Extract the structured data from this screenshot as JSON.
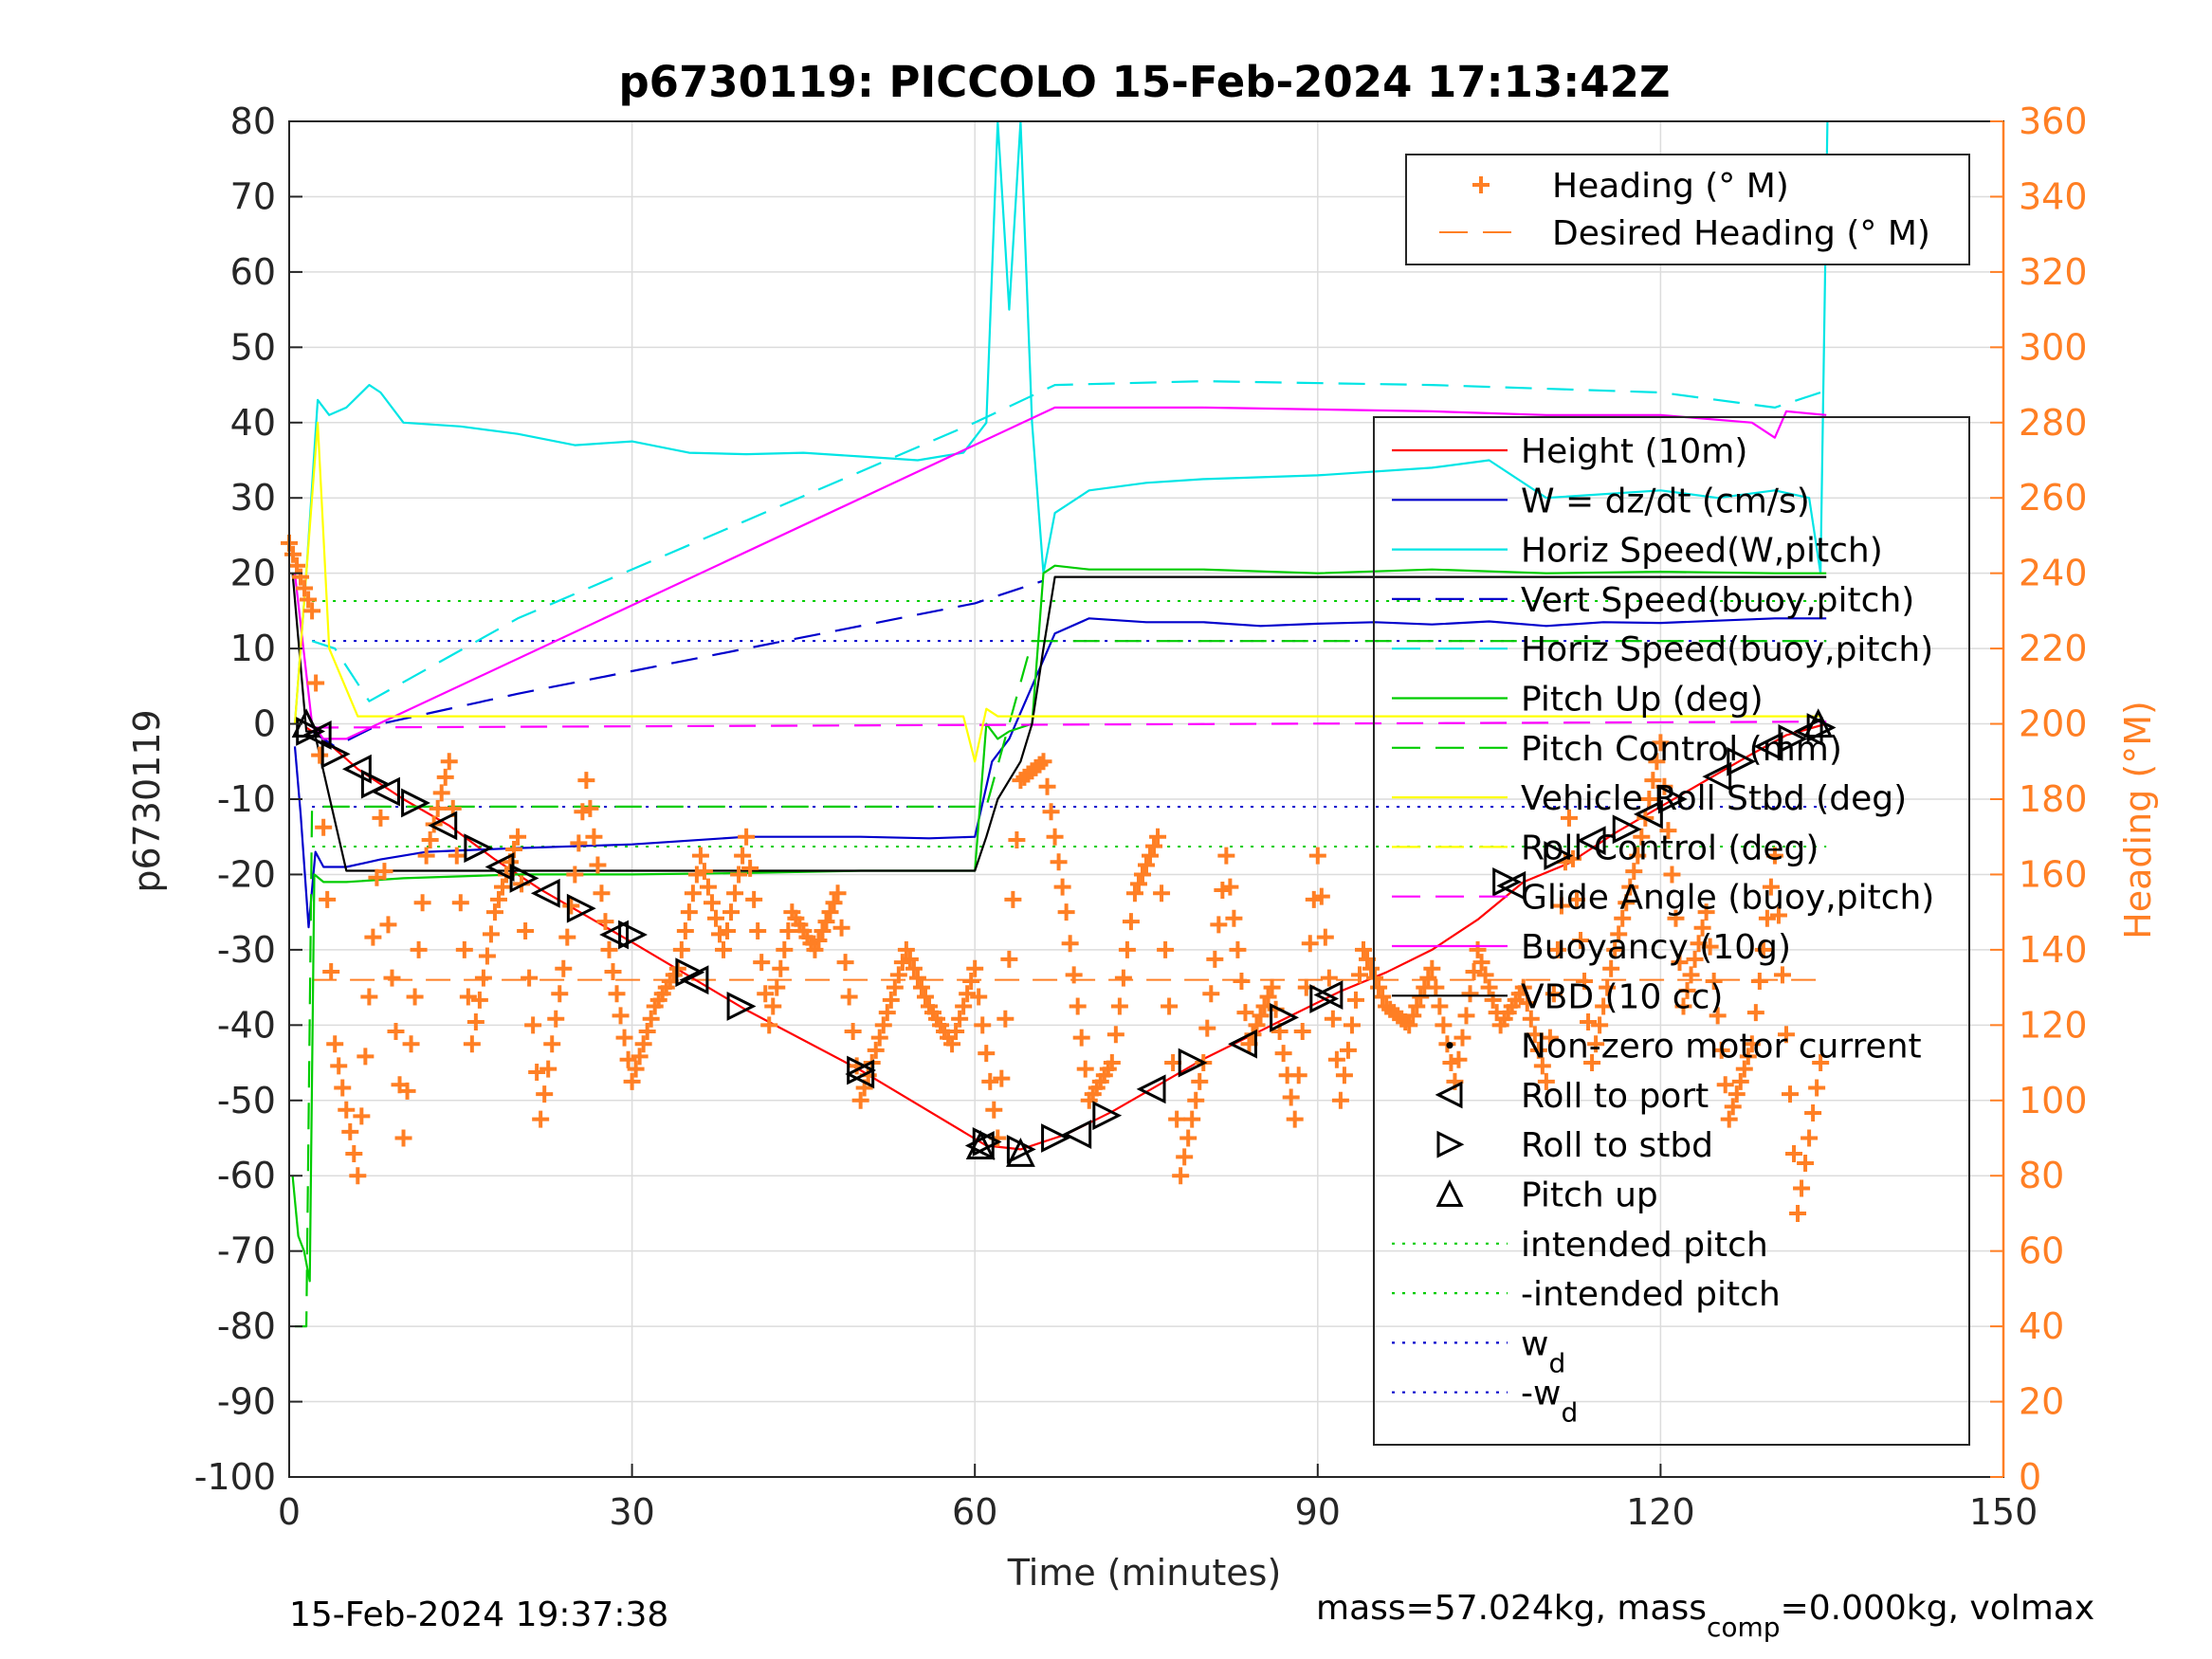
{
  "chart_data": {
    "type": "line",
    "title": "p6730119: PICCOLO 15-Feb-2024 17:13:42Z",
    "xlabel": "Time (minutes)",
    "ylabel": "p6730119",
    "y2label": "Heading (°M)",
    "xlim": [
      0,
      150
    ],
    "ylim": [
      -100,
      80
    ],
    "y2lim": [
      0,
      360
    ],
    "xticks": [
      "0",
      "30",
      "60",
      "90",
      "120",
      "150"
    ],
    "yticks": [
      "80",
      "70",
      "60",
      "50",
      "40",
      "30",
      "20",
      "10",
      "0",
      "-10",
      "-20",
      "-30",
      "-40",
      "-50",
      "-60",
      "-70",
      "-80",
      "-90",
      "-100"
    ],
    "y2ticks": [
      "360",
      "340",
      "320",
      "300",
      "280",
      "260",
      "240",
      "220",
      "200",
      "180",
      "160",
      "140",
      "120",
      "100",
      "80",
      "60",
      "40",
      "20",
      "0"
    ],
    "grid": true,
    "footer_left": "15-Feb-2024 19:37:38",
    "footer_right_parts": [
      "mass=57.024kg, mass",
      "comp",
      "=0.000kg, volmax"
    ],
    "legend_heading": [
      {
        "label": "Heading (° M)",
        "color": "#ff7f24",
        "style": "plus"
      },
      {
        "label": "Desired Heading (° M)",
        "color": "#ff7f24",
        "style": "dash"
      }
    ],
    "legend_main": [
      {
        "label": "Height (10m)",
        "color": "#ff0000",
        "style": "solid"
      },
      {
        "label": "W = dz/dt (cm/s)",
        "color": "#0000cc",
        "style": "solid"
      },
      {
        "label": "Horiz Speed(W,pitch)",
        "color": "#00e5e5",
        "style": "solid"
      },
      {
        "label": "Vert Speed(buoy,pitch)",
        "color": "#0000cc",
        "style": "dash"
      },
      {
        "label": "Horiz Speed(buoy,pitch)",
        "color": "#00e5e5",
        "style": "dash"
      },
      {
        "label": "Pitch Up (deg)",
        "color": "#00cc00",
        "style": "solid"
      },
      {
        "label": "Pitch Control (mm)",
        "color": "#00cc00",
        "style": "dash"
      },
      {
        "label": "Vehicle Roll Stbd (deg)",
        "color": "#ffff00",
        "style": "solid"
      },
      {
        "label": "Roll Control (deg)",
        "color": "#ffff00",
        "style": "dash"
      },
      {
        "label": "Glide Angle (buoy,pitch)",
        "color": "#ff00ff",
        "style": "dash"
      },
      {
        "label": "Buoyancy (10g)",
        "color": "#ff00ff",
        "style": "solid"
      },
      {
        "label": "VBD (10 cc)",
        "color": "#000000",
        "style": "solid"
      },
      {
        "label": "Non-zero motor current",
        "color": "#000000",
        "style": "dot"
      },
      {
        "label": "Roll to port",
        "color": "#000000",
        "style": "tri-left"
      },
      {
        "label": "Roll to stbd",
        "color": "#000000",
        "style": "tri-right"
      },
      {
        "label": "Pitch up",
        "color": "#000000",
        "style": "tri-up"
      },
      {
        "label": "intended pitch",
        "color": "#00cc00",
        "style": "dotted"
      },
      {
        "label": "-intended pitch",
        "color": "#00cc00",
        "style": "dotted"
      },
      {
        "label": "w",
        "sub": "d",
        "color": "#0000cc",
        "style": "dotted"
      },
      {
        "label": "-w",
        "sub": "d",
        "color": "#0000cc",
        "style": "dotted"
      }
    ],
    "series": [
      {
        "name": "Height (10m)",
        "color": "#ff0000",
        "x": [
          1.5,
          3,
          6,
          10,
          14,
          18,
          22,
          26,
          30,
          35,
          40,
          50,
          61,
          64,
          68,
          72,
          76,
          80,
          84,
          88,
          92,
          96,
          100,
          104,
          108,
          112,
          116,
          120,
          124,
          128,
          131,
          134.5
        ],
        "y": [
          -0.5,
          -2,
          -6,
          -10,
          -13.5,
          -18,
          -22,
          -25.5,
          -29,
          -33.5,
          -38,
          -46,
          -56,
          -56.5,
          -54.5,
          -51.5,
          -48,
          -44.5,
          -41.5,
          -38.5,
          -35.5,
          -33,
          -30,
          -26,
          -21,
          -18.5,
          -14.5,
          -11,
          -7.5,
          -4,
          -1.5,
          0
        ]
      },
      {
        "name": "W = dz/dt (cm/s)",
        "color": "#0000cc",
        "x": [
          0.5,
          1,
          1.7,
          2.3,
          3,
          5,
          8,
          12,
          20,
          30,
          40,
          50,
          56,
          60,
          61.5,
          63,
          65,
          67,
          70,
          75,
          80,
          85,
          90,
          95,
          100,
          105,
          110,
          115,
          120,
          125,
          130,
          134.5
        ],
        "y": [
          -3,
          -12,
          -27,
          -17,
          -19,
          -19,
          -18,
          -17,
          -16.5,
          -16,
          -15,
          -15,
          -15.2,
          -15,
          -5,
          -2,
          5,
          12,
          14,
          13.5,
          13.5,
          13,
          13.3,
          13.5,
          13.2,
          13.6,
          13,
          13.5,
          13.4,
          13.7,
          14,
          14
        ]
      },
      {
        "name": "Horiz Speed(W,pitch)",
        "color": "#00e5e5",
        "x": [
          0.5,
          1.5,
          2.5,
          3.5,
          5,
          7,
          8,
          10,
          15,
          20,
          25,
          30,
          35,
          40,
          45,
          50,
          55,
          59,
          61,
          62,
          63,
          64,
          65,
          66,
          67,
          70,
          75,
          80,
          90,
          100,
          105,
          110,
          120,
          125,
          130,
          133,
          134,
          134.6
        ],
        "y": [
          0,
          20,
          43,
          41,
          42,
          45,
          44,
          40,
          39.5,
          38.5,
          37,
          37.5,
          36,
          35.8,
          36,
          35.5,
          35,
          36,
          40,
          80,
          55,
          80,
          40,
          20,
          28,
          31,
          32,
          32.5,
          33,
          34,
          35,
          30,
          31,
          30,
          31,
          30,
          20,
          80
        ]
      },
      {
        "name": "Vert Speed(buoy,pitch)",
        "color": "#0000cc",
        "dash": true,
        "x": [
          2,
          4,
          8,
          20,
          40,
          60,
          66
        ],
        "y": [
          -1,
          -3,
          0,
          4,
          10,
          16,
          19
        ]
      },
      {
        "name": "Horiz Speed(buoy,pitch)",
        "color": "#00e5e5",
        "dash": true,
        "x": [
          2,
          4,
          7,
          20,
          40,
          60,
          67,
          80,
          100,
          120,
          130,
          134
        ],
        "y": [
          11,
          10,
          3,
          14,
          27,
          40,
          45,
          45.5,
          45,
          44,
          42,
          44
        ]
      },
      {
        "name": "Pitch Up (deg)",
        "color": "#00cc00",
        "x": [
          0.3,
          0.8,
          1.3,
          1.8,
          2.2,
          3,
          5,
          10,
          20,
          30,
          40,
          50,
          60,
          61,
          62,
          63,
          64,
          65,
          66,
          67,
          70,
          80,
          90,
          100,
          110,
          120,
          130,
          134.5
        ],
        "y": [
          -60,
          -68,
          -70,
          -74,
          -20,
          -21,
          -21,
          -20.5,
          -20,
          -20,
          -19.8,
          -19.5,
          -19.5,
          0,
          -2,
          -1,
          -0.5,
          0,
          20,
          21,
          20.5,
          20.5,
          20,
          20.5,
          20,
          20.2,
          20,
          20
        ]
      },
      {
        "name": "Pitch Control (mm)",
        "color": "#00cc00",
        "dash": true,
        "x": [
          0.5,
          1.5,
          2,
          3,
          60,
          61,
          65,
          67,
          134.5
        ],
        "y": [
          -80,
          -80,
          -11,
          -11,
          -11,
          -11,
          11,
          11,
          11
        ]
      },
      {
        "name": "Buoyancy (10g)",
        "color": "#ff00ff",
        "x": [
          0.5,
          2,
          3,
          5,
          67,
          80,
          100,
          110,
          120,
          128,
          130,
          131,
          134.5
        ],
        "y": [
          20,
          0,
          -2,
          -2,
          42,
          42,
          41.5,
          41,
          41,
          40,
          38,
          41.5,
          41
        ]
      },
      {
        "name": "Glide Angle (buoy,pitch)",
        "color": "#ff00ff",
        "dash": true,
        "x": [
          2,
          134.5
        ],
        "y": [
          -0.5,
          0.3
        ]
      },
      {
        "name": "VBD (10 cc)",
        "color": "#000000",
        "x": [
          0.3,
          1.5,
          2.2,
          5,
          60,
          61,
          62,
          64,
          65,
          66,
          67,
          70,
          80,
          100,
          120,
          134.5
        ],
        "y": [
          20,
          -1,
          -1,
          -19.5,
          -19.5,
          -15,
          -10,
          -5,
          0,
          10,
          19.5,
          19.5,
          19.5,
          19.5,
          19.5,
          19.5
        ]
      },
      {
        "name": "Vehicle Roll Stbd (deg)",
        "color": "#ffff00",
        "x": [
          0.5,
          1.5,
          2.5,
          3.5,
          6,
          8,
          12,
          20,
          30,
          40,
          50,
          59,
          60,
          61,
          62,
          63,
          64,
          70,
          80,
          90,
          100,
          110,
          120,
          130,
          134
        ],
        "y": [
          0,
          20,
          40,
          10,
          1,
          1,
          1,
          1,
          1,
          1,
          1,
          1,
          -5,
          2,
          1,
          1,
          1,
          1,
          1,
          1,
          1,
          1,
          1,
          1,
          1
        ]
      },
      {
        "name": "Heading (° M)",
        "color": "#ff7f24",
        "axis": "right",
        "x": [
          0,
          2,
          4,
          6,
          8,
          10,
          12,
          14,
          16,
          18,
          20,
          22,
          24,
          26,
          28,
          30,
          32,
          34,
          36,
          38,
          40,
          42,
          44,
          46,
          48,
          50,
          52,
          54,
          56,
          58,
          60,
          62,
          64,
          66,
          68,
          70,
          72,
          74,
          76,
          78,
          80,
          82,
          84,
          86,
          88,
          90,
          92,
          94,
          96,
          98,
          100,
          102,
          104,
          106,
          108,
          110,
          112,
          114,
          116,
          118,
          120,
          122,
          124,
          126,
          128,
          130,
          132,
          134
        ],
        "y": [
          248,
          230,
          115,
          80,
          175,
          90,
          165,
          190,
          115,
          150,
          170,
          95,
          135,
          185,
          140,
          105,
          125,
          135,
          165,
          140,
          170,
          120,
          150,
          140,
          155,
          100,
          120,
          140,
          125,
          115,
          135,
          90,
          185,
          190,
          150,
          100,
          110,
          155,
          170,
          80,
          110,
          165,
          115,
          130,
          95,
          165,
          100,
          140,
          125,
          120,
          135,
          105,
          140,
          120,
          130,
          105,
          175,
          110,
          140,
          165,
          195,
          125,
          150,
          95,
          115,
          165,
          70,
          110
        ]
      }
    ],
    "markers": {
      "roll_to_port": {
        "x": [
          2.5,
          6,
          8.5,
          13.5,
          18.5,
          22.5,
          28.5,
          35.5,
          50,
          60.5,
          69,
          75.5,
          83.5,
          91,
          107,
          114,
          119,
          125,
          129.5,
          133
        ],
        "y": [
          -1.5,
          -6,
          -9,
          -13.5,
          -19,
          -22.5,
          -28,
          -34,
          -46.5,
          -56,
          -54.5,
          -48.5,
          -42.5,
          -36,
          -21.5,
          -15.5,
          -12,
          -7,
          -3,
          -1
        ]
      },
      "roll_to_stbd": {
        "x": [
          1.8,
          4,
          7.5,
          11,
          16.5,
          20.5,
          25.5,
          30,
          35,
          39.5,
          50,
          61,
          64,
          67,
          71.5,
          79,
          87,
          90.5,
          106.5,
          111,
          117,
          121,
          127,
          131.5,
          134
        ],
        "y": [
          -1,
          -4,
          -8,
          -10.5,
          -16.5,
          -20.5,
          -24.5,
          -28,
          -33,
          -37.5,
          -46,
          -55.5,
          -56.5,
          -55,
          -52,
          -45,
          -39,
          -36.5,
          -21,
          -17.5,
          -14,
          -10,
          -5,
          -2,
          -0.5
        ]
      },
      "pitch_up": {
        "x": [
          1.5,
          60.5,
          64,
          133.8
        ],
        "y": [
          0,
          -56,
          -57,
          0
        ]
      }
    },
    "reference_lines": [
      {
        "name": "intended pitch",
        "y": 16.3,
        "color": "#00cc00"
      },
      {
        "name": "-intended pitch",
        "y": -16.3,
        "color": "#00cc00"
      },
      {
        "name": "w_d",
        "y": 11,
        "color": "#0000cc"
      },
      {
        "name": "-w_d",
        "y": -11,
        "color": "#0000cc"
      },
      {
        "name": "Desired Heading (° M)",
        "y2": 132,
        "color": "#ff7f24"
      }
    ]
  }
}
